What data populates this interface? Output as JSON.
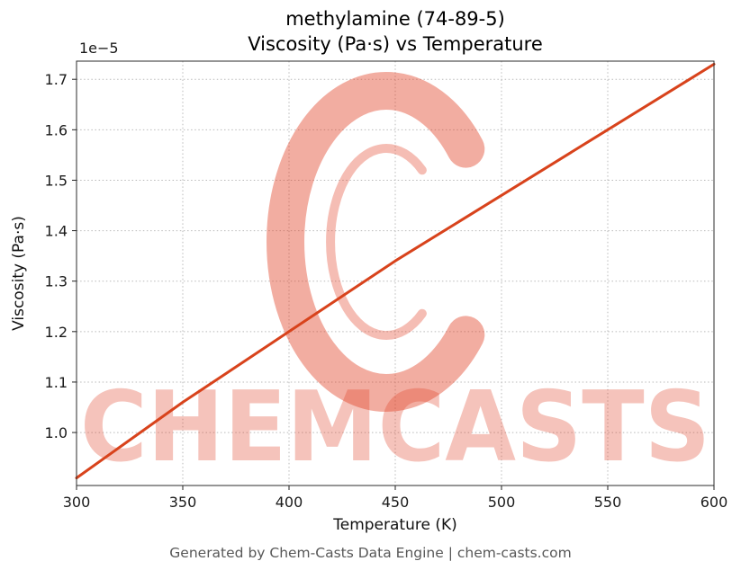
{
  "figure": {
    "title_line1": "methylamine (74-89-5)",
    "title_line2": "Viscosity (Pa·s) vs Temperature",
    "footer": "Generated by Chem-Casts Data Engine | chem-casts.com"
  },
  "watermark": {
    "text": "CHEMCASTS",
    "color": "#e03c20",
    "logo_opacity": 0.42,
    "text_opacity": 0.3
  },
  "chart_data": {
    "type": "line",
    "title": "methylamine (74-89-5) Viscosity (Pa·s) vs Temperature",
    "xlabel": "Temperature (K)",
    "ylabel": "Viscosity (Pa·s)",
    "y_offset_label": "1e−5",
    "x": [
      300,
      350,
      400,
      450,
      500,
      550,
      600
    ],
    "y_1e5": [
      0.91,
      1.06,
      1.2,
      1.34,
      1.47,
      1.6,
      1.73
    ],
    "y_unit_multiplier": 1e-05,
    "xlim": [
      300,
      600
    ],
    "ylim_1e5": [
      0.895,
      1.736
    ],
    "xticks": [
      300,
      350,
      400,
      450,
      500,
      550,
      600
    ],
    "yticks_1e5": [
      1.0,
      1.1,
      1.2,
      1.3,
      1.4,
      1.5,
      1.6,
      1.7
    ],
    "grid": true,
    "grid_style": "dotted",
    "legend": "none",
    "line_color": "#d8431c"
  }
}
